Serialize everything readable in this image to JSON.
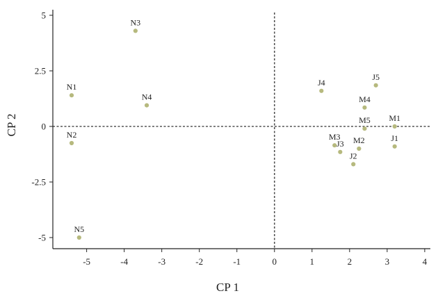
{
  "chart_data": {
    "type": "scatter",
    "xlabel": "CP 1",
    "ylabel": "CP 2",
    "xlim": [
      -5.9,
      4.15
    ],
    "ylim": [
      -5.5,
      5.25
    ],
    "xticks": [
      -5,
      -4,
      -3,
      -2,
      -1,
      0,
      1,
      2,
      3,
      4
    ],
    "xtick_labels": [
      "-5",
      "-4",
      "-3",
      "-2",
      "-1",
      "0",
      "1",
      "2",
      "3",
      "4"
    ],
    "yticks": [
      5,
      2.5,
      0,
      -2.5,
      -5
    ],
    "ytick_labels": [
      "5",
      "2.5",
      "0",
      "-2.5",
      "-5"
    ],
    "reference_lines": {
      "x": 0,
      "y": 0,
      "style": "dashed"
    },
    "grid": false,
    "legend": "none",
    "point_color": "#b6b97e",
    "points": [
      {
        "label": "N1",
        "x": -5.4,
        "y": 1.4
      },
      {
        "label": "N2",
        "x": -5.4,
        "y": -0.75
      },
      {
        "label": "N3",
        "x": -3.7,
        "y": 4.3
      },
      {
        "label": "N4",
        "x": -3.4,
        "y": 0.95
      },
      {
        "label": "N5",
        "x": -5.2,
        "y": -5.0
      },
      {
        "label": "J1",
        "x": 3.2,
        "y": -0.9
      },
      {
        "label": "J2",
        "x": 2.1,
        "y": -1.7
      },
      {
        "label": "J3",
        "x": 1.75,
        "y": -1.15
      },
      {
        "label": "J4",
        "x": 1.25,
        "y": 1.6
      },
      {
        "label": "J5",
        "x": 2.7,
        "y": 1.85
      },
      {
        "label": "M1",
        "x": 3.2,
        "y": 0.0
      },
      {
        "label": "M2",
        "x": 2.25,
        "y": -1.0
      },
      {
        "label": "M3",
        "x": 1.6,
        "y": -0.85
      },
      {
        "label": "M4",
        "x": 2.4,
        "y": 0.85
      },
      {
        "label": "M5",
        "x": 2.4,
        "y": -0.1
      }
    ]
  }
}
